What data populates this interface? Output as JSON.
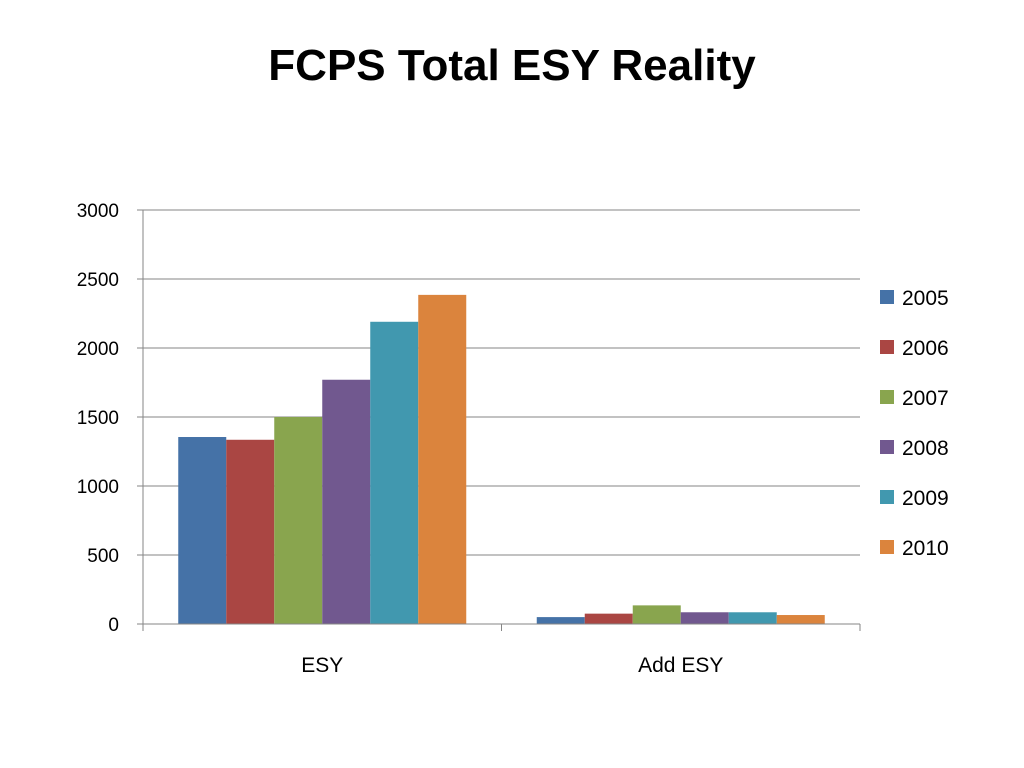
{
  "slide": {
    "title": "FCPS Total ESY Reality"
  },
  "chart_data": {
    "type": "bar",
    "title": "",
    "xlabel": "",
    "ylabel": "",
    "categories": [
      "ESY",
      "Add ESY"
    ],
    "series": [
      {
        "name": "2005",
        "color": "#4572A7",
        "values": [
          1355,
          50
        ]
      },
      {
        "name": "2006",
        "color": "#AA4643",
        "values": [
          1335,
          75
        ]
      },
      {
        "name": "2007",
        "color": "#89A54E",
        "values": [
          1500,
          135
        ]
      },
      {
        "name": "2008",
        "color": "#71588F",
        "values": [
          1770,
          85
        ]
      },
      {
        "name": "2009",
        "color": "#4198AF",
        "values": [
          2190,
          85
        ]
      },
      {
        "name": "2010",
        "color": "#DB843D",
        "values": [
          2385,
          65
        ]
      }
    ],
    "yticks": [
      "0",
      "500",
      "1000",
      "1500",
      "2000",
      "2500",
      "3000"
    ],
    "ylim": [
      0,
      3000
    ],
    "grid": true,
    "legend": "right"
  }
}
